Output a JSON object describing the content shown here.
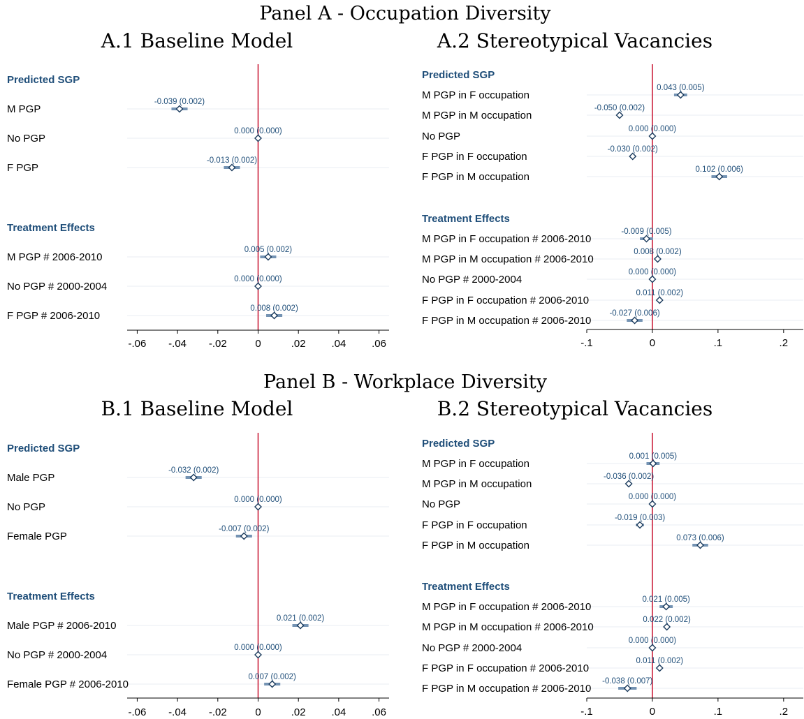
{
  "panel_a_title": "Panel A - Occupation Diversity",
  "panel_b_title": "Panel B - Workplace Diversity",
  "chart_data": [
    {
      "id": "a1",
      "type": "coefplot",
      "title": "A.1 Baseline Model",
      "xlim": [
        -0.065,
        0.065
      ],
      "xticks": [
        -0.06,
        -0.04,
        -0.02,
        0,
        0.02,
        0.04,
        0.06
      ],
      "xtick_labels": [
        "-.06",
        "-.04",
        "-.02",
        "0",
        ".02",
        ".04",
        ".06"
      ],
      "reference_line": 0,
      "groups": [
        {
          "label": "Predicted SGP",
          "rows": [
            {
              "label": "M PGP",
              "coef": -0.039,
              "ci": [
                -0.043,
                -0.035
              ],
              "annotation": "-0.039 (0.002)"
            },
            {
              "label": "No PGP",
              "coef": 0.0,
              "ci": [
                0.0,
                0.0
              ],
              "annotation": "0.000 (0.000)"
            },
            {
              "label": "F PGP",
              "coef": -0.013,
              "ci": [
                -0.017,
                -0.009
              ],
              "annotation": "-0.013 (0.002)"
            }
          ]
        },
        {
          "label": "Treatment Effects",
          "rows": [
            {
              "label": "M PGP # 2006-2010",
              "coef": 0.005,
              "ci": [
                0.001,
                0.009
              ],
              "annotation": "0.005 (0.002)"
            },
            {
              "label": "No PGP # 2000-2004",
              "coef": 0.0,
              "ci": [
                0.0,
                0.0
              ],
              "annotation": "0.000 (0.000)"
            },
            {
              "label": "F PGP # 2006-2010",
              "coef": 0.008,
              "ci": [
                0.004,
                0.012
              ],
              "annotation": "0.008 (0.002)"
            }
          ]
        }
      ]
    },
    {
      "id": "a2",
      "type": "coefplot",
      "title": "A.2 Stereotypical Vacancies",
      "xlim": [
        -0.1,
        0.23
      ],
      "xticks": [
        -0.1,
        0,
        0.1,
        0.2
      ],
      "xtick_labels": [
        "-.1",
        "0",
        ".1",
        ".2"
      ],
      "reference_line": 0,
      "groups": [
        {
          "label": "Predicted SGP",
          "rows": [
            {
              "label": "M PGP in F occupation",
              "coef": 0.043,
              "ci": [
                0.033,
                0.053
              ],
              "annotation": "0.043 (0.005)"
            },
            {
              "label": "M PGP in M occupation",
              "coef": -0.05,
              "ci": [
                -0.054,
                -0.046
              ],
              "annotation": "-0.050 (0.002)"
            },
            {
              "label": "No PGP",
              "coef": 0.0,
              "ci": [
                0.0,
                0.0
              ],
              "annotation": "0.000 (0.000)"
            },
            {
              "label": "F PGP in F occupation",
              "coef": -0.03,
              "ci": [
                -0.034,
                -0.026
              ],
              "annotation": "-0.030 (0.002)"
            },
            {
              "label": "F PGP in M occupation",
              "coef": 0.102,
              "ci": [
                0.09,
                0.114
              ],
              "annotation": "0.102 (0.006)"
            }
          ]
        },
        {
          "label": "Treatment Effects",
          "rows": [
            {
              "label": "M PGP in F occupation # 2006-2010",
              "coef": -0.009,
              "ci": [
                -0.019,
                0.001
              ],
              "annotation": "-0.009 (0.005)"
            },
            {
              "label": "M PGP in M occupation # 2006-2010",
              "coef": 0.008,
              "ci": [
                0.004,
                0.012
              ],
              "annotation": "0.008 (0.002)"
            },
            {
              "label": "No PGP # 2000-2004",
              "coef": 0.0,
              "ci": [
                0.0,
                0.0
              ],
              "annotation": "0.000 (0.000)"
            },
            {
              "label": "F PGP in F occupation # 2006-2010",
              "coef": 0.011,
              "ci": [
                0.007,
                0.015
              ],
              "annotation": "0.011 (0.002)"
            },
            {
              "label": "F PGP in M occupation # 2006-2010",
              "coef": -0.027,
              "ci": [
                -0.039,
                -0.015
              ],
              "annotation": "-0.027 (0.006)"
            }
          ]
        }
      ]
    },
    {
      "id": "b1",
      "type": "coefplot",
      "title": "B.1 Baseline Model",
      "xlim": [
        -0.065,
        0.065
      ],
      "xticks": [
        -0.06,
        -0.04,
        -0.02,
        0,
        0.02,
        0.04,
        0.06
      ],
      "xtick_labels": [
        "-.06",
        "-.04",
        "-.02",
        "0",
        ".02",
        ".04",
        ".06"
      ],
      "reference_line": 0,
      "groups": [
        {
          "label": "Predicted SGP",
          "rows": [
            {
              "label": "Male PGP",
              "coef": -0.032,
              "ci": [
                -0.036,
                -0.028
              ],
              "annotation": "-0.032 (0.002)"
            },
            {
              "label": "No PGP",
              "coef": 0.0,
              "ci": [
                0.0,
                0.0
              ],
              "annotation": "0.000 (0.000)"
            },
            {
              "label": "Female PGP",
              "coef": -0.007,
              "ci": [
                -0.011,
                -0.003
              ],
              "annotation": "-0.007 (0.002)"
            }
          ]
        },
        {
          "label": "Treatment Effects",
          "rows": [
            {
              "label": "Male PGP # 2006-2010",
              "coef": 0.021,
              "ci": [
                0.017,
                0.025
              ],
              "annotation": "0.021 (0.002)"
            },
            {
              "label": "No PGP # 2000-2004",
              "coef": 0.0,
              "ci": [
                0.0,
                0.0
              ],
              "annotation": "0.000 (0.000)"
            },
            {
              "label": "Female PGP # 2006-2010",
              "coef": 0.007,
              "ci": [
                0.003,
                0.011
              ],
              "annotation": "0.007 (0.002)"
            }
          ]
        }
      ]
    },
    {
      "id": "b2",
      "type": "coefplot",
      "title": "B.2 Stereotypical Vacancies",
      "xlim": [
        -0.1,
        0.23
      ],
      "xticks": [
        -0.1,
        0,
        0.1,
        0.2
      ],
      "xtick_labels": [
        "-.1",
        "0",
        ".1",
        ".2"
      ],
      "reference_line": 0,
      "groups": [
        {
          "label": "Predicted SGP",
          "rows": [
            {
              "label": "M PGP in F occupation",
              "coef": 0.001,
              "ci": [
                -0.009,
                0.011
              ],
              "annotation": "0.001 (0.005)"
            },
            {
              "label": "M PGP in M occupation",
              "coef": -0.036,
              "ci": [
                -0.04,
                -0.032
              ],
              "annotation": "-0.036 (0.002)"
            },
            {
              "label": "No PGP",
              "coef": 0.0,
              "ci": [
                0.0,
                0.0
              ],
              "annotation": "0.000 (0.000)"
            },
            {
              "label": "F PGP in F occupation",
              "coef": -0.019,
              "ci": [
                -0.025,
                -0.013
              ],
              "annotation": "-0.019 (0.003)"
            },
            {
              "label": "F PGP in M occupation",
              "coef": 0.073,
              "ci": [
                0.061,
                0.085
              ],
              "annotation": "0.073 (0.006)"
            }
          ]
        },
        {
          "label": "Treatment Effects",
          "rows": [
            {
              "label": "M PGP in F occupation # 2006-2010",
              "coef": 0.021,
              "ci": [
                0.011,
                0.031
              ],
              "annotation": "0.021 (0.005)"
            },
            {
              "label": "M PGP in M occupation # 2006-2010",
              "coef": 0.022,
              "ci": [
                0.018,
                0.026
              ],
              "annotation": "0.022 (0.002)"
            },
            {
              "label": "No PGP # 2000-2004",
              "coef": 0.0,
              "ci": [
                0.0,
                0.0
              ],
              "annotation": "0.000 (0.000)"
            },
            {
              "label": "F PGP in F occupation # 2006-2010",
              "coef": 0.011,
              "ci": [
                0.007,
                0.015
              ],
              "annotation": "0.011 (0.002)"
            },
            {
              "label": "F PGP in M occupation # 2006-2010",
              "coef": -0.038,
              "ci": [
                -0.052,
                -0.024
              ],
              "annotation": "-0.038 (0.007)"
            }
          ]
        }
      ]
    }
  ]
}
